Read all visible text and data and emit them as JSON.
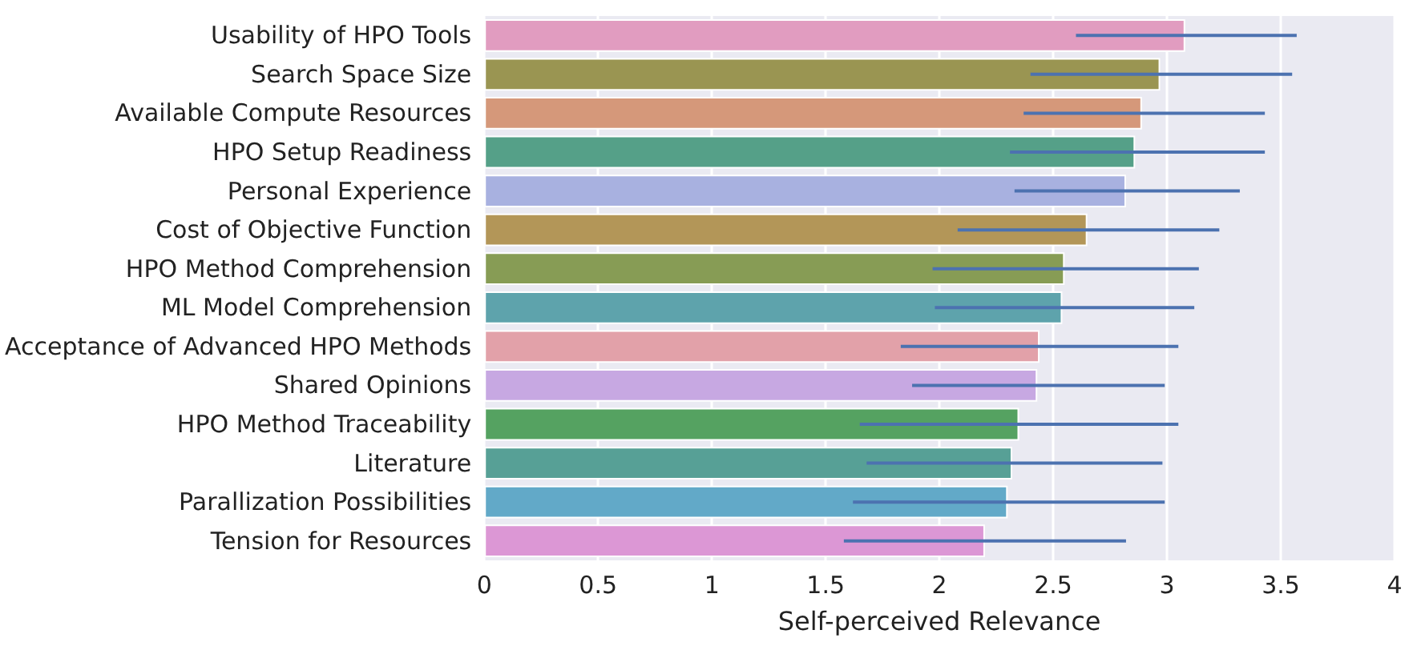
{
  "chart_data": {
    "type": "bar",
    "orientation": "horizontal",
    "xlabel": "Self-perceived Relevance",
    "categories": [
      "Usability of HPO Tools",
      "Search Space Size",
      "Available Compute Resources",
      "HPO Setup Readiness",
      "Personal Experience",
      "Cost of Objective Function",
      "HPO Method Comprehension",
      "ML Model Comprehension",
      "Acceptance of Advanced HPO Methods",
      "Shared Opinions",
      "HPO Method Traceability",
      "Literature",
      "Parallization Possibilities",
      "Tension for Resources"
    ],
    "values": [
      3.08,
      2.97,
      2.89,
      2.86,
      2.82,
      2.65,
      2.55,
      2.54,
      2.44,
      2.43,
      2.35,
      2.32,
      2.3,
      2.2
    ],
    "colors": [
      "#e19cc0",
      "#9a9552",
      "#d5987a",
      "#55a088",
      "#a8b1e0",
      "#b39658",
      "#879c55",
      "#5ea3ac",
      "#e2a1a9",
      "#c7a8e2",
      "#55a261",
      "#57a096",
      "#62a9c8",
      "#dc97d5"
    ],
    "errors": [
      [
        2.6,
        3.57
      ],
      [
        2.4,
        3.55
      ],
      [
        2.37,
        3.43
      ],
      [
        2.31,
        3.43
      ],
      [
        2.33,
        3.32
      ],
      [
        2.08,
        3.23
      ],
      [
        1.97,
        3.14
      ],
      [
        1.98,
        3.12
      ],
      [
        1.83,
        3.05
      ],
      [
        1.88,
        2.99
      ],
      [
        1.65,
        3.05
      ],
      [
        1.68,
        2.98
      ],
      [
        1.62,
        2.99
      ],
      [
        1.58,
        2.82
      ]
    ],
    "xlim": [
      0,
      4
    ],
    "xticks": [
      0,
      0.5,
      1,
      1.5,
      2,
      2.5,
      3,
      3.5,
      4
    ],
    "grid": "x"
  }
}
